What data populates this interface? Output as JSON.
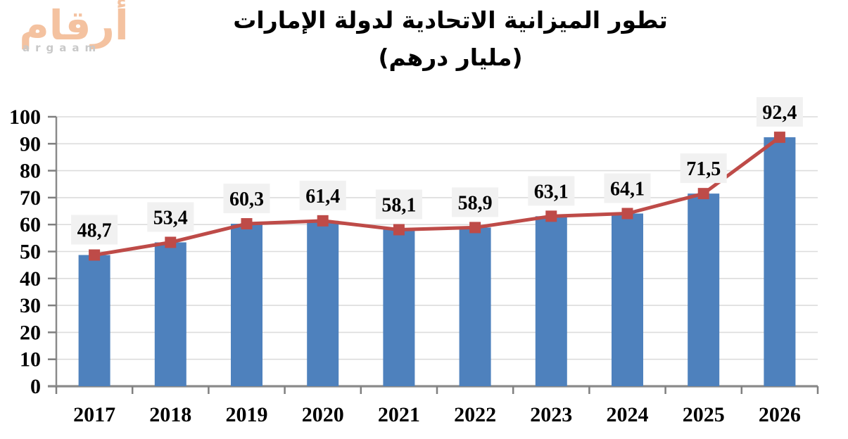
{
  "logo": {
    "arabic_text": "أرقام",
    "latin_text": "argaam",
    "arabic_color": "#F4C2A0",
    "latin_color": "#C9C9C9"
  },
  "title": {
    "line1": "تطور الميزانية الاتحادية لدولة الإمارات",
    "line2": "(مليار درهم)"
  },
  "chart_data": {
    "type": "bar",
    "title": "تطور الميزانية الاتحادية لدولة الإمارات (مليار درهم)",
    "xlabel": "",
    "ylabel": "",
    "categories": [
      "2017",
      "2018",
      "2019",
      "2020",
      "2021",
      "2022",
      "2023",
      "2024",
      "2025",
      "2026"
    ],
    "series": [
      {
        "name": "federal-budget-bars",
        "type": "bar",
        "color": "#4E81BD",
        "values": [
          48.7,
          53.4,
          60.3,
          61.4,
          58.1,
          58.9,
          63.1,
          64.1,
          71.5,
          92.4
        ]
      },
      {
        "name": "federal-budget-line",
        "type": "line",
        "color": "#BE4B48",
        "marker": "square",
        "values": [
          48.7,
          53.4,
          60.3,
          61.4,
          58.1,
          58.9,
          63.1,
          64.1,
          71.5,
          92.4
        ]
      }
    ],
    "data_labels": [
      "48,7",
      "53,4",
      "60,3",
      "61,4",
      "58,1",
      "58,9",
      "63,1",
      "64,1",
      "71,5",
      "92,4"
    ],
    "ylim": [
      0,
      100
    ],
    "ytick_step": 10,
    "ytick_labels": [
      "0",
      "10",
      "20",
      "30",
      "40",
      "50",
      "60",
      "70",
      "80",
      "90",
      "100"
    ],
    "grid": true,
    "legend": "none",
    "colors": {
      "gridline": "#DCDCDC",
      "axis": "#8A8A8A",
      "tick": "#7F7F7F",
      "label_bg": "#F1F1F1",
      "text": "#000000"
    }
  }
}
